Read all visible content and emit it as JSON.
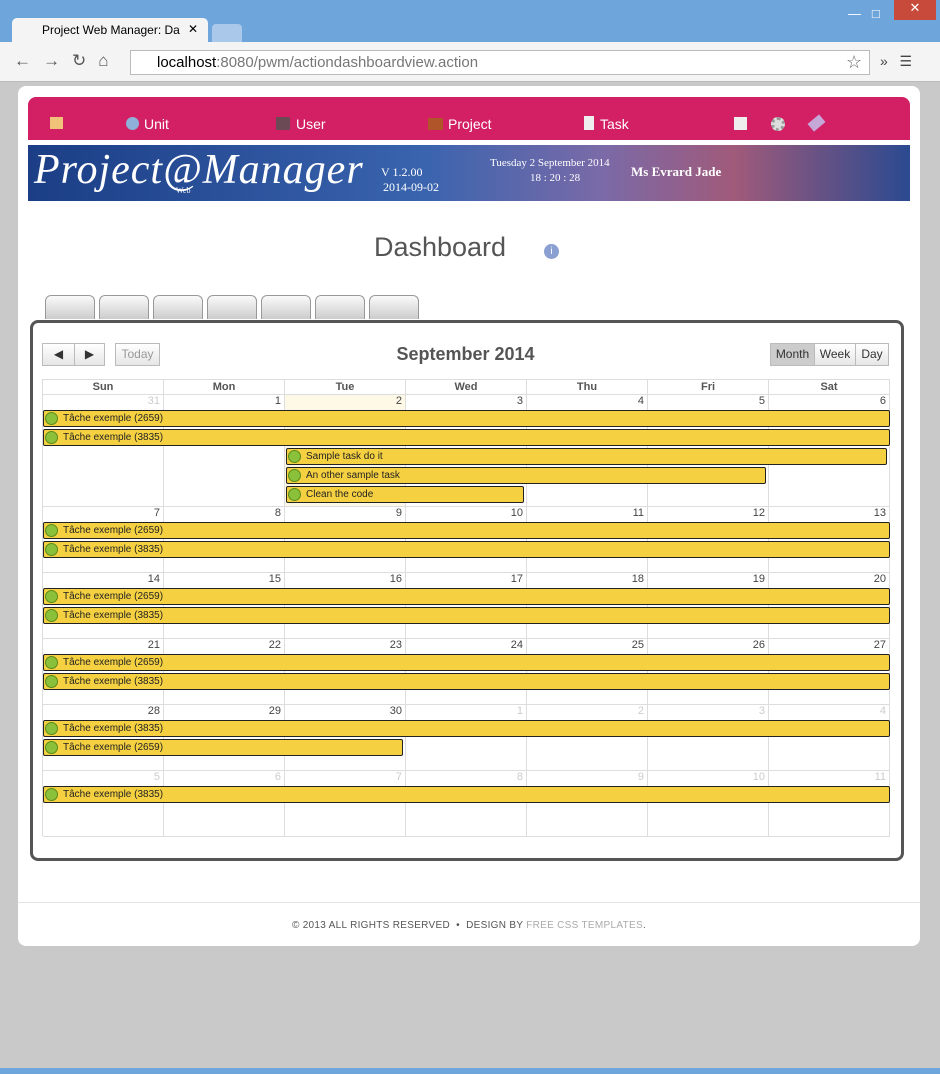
{
  "browser": {
    "tab_title": "Project Web Manager: Da",
    "url_host": "localhost",
    "url_rest": ":8080/pwm/actiondashboardview.action"
  },
  "nav": [
    "Unit",
    "User",
    "Project",
    "Task"
  ],
  "banner": {
    "logo": "Project@Manager",
    "logo_sub": "Web",
    "version": "V 1.2.00",
    "date": "2014-09-02",
    "long_date": "Tuesday 2 September 2014",
    "time": "18 : 20 : 28",
    "user": "Ms Evrard Jade"
  },
  "page_title": "Dashboard",
  "calendar": {
    "today_button": "Today",
    "title": "September 2014",
    "views": [
      "Month",
      "Week",
      "Day"
    ],
    "weekdays": [
      "Sun",
      "Mon",
      "Tue",
      "Wed",
      "Thu",
      "Fri",
      "Sat"
    ],
    "weeks": [
      {
        "days": [
          31,
          1,
          2,
          3,
          4,
          5,
          6
        ],
        "events": [
          "Tâche exemple (2659)",
          "Tâche exemple (3835)",
          "Sample task do it",
          "An other sample task",
          "Clean the code"
        ]
      },
      {
        "days": [
          7,
          8,
          9,
          10,
          11,
          12,
          13
        ],
        "events": [
          "Tâche exemple (2659)",
          "Tâche exemple (3835)"
        ]
      },
      {
        "days": [
          14,
          15,
          16,
          17,
          18,
          19,
          20
        ],
        "events": [
          "Tâche exemple (2659)",
          "Tâche exemple (3835)"
        ]
      },
      {
        "days": [
          21,
          22,
          23,
          24,
          25,
          26,
          27
        ],
        "events": [
          "Tâche exemple (2659)",
          "Tâche exemple (3835)"
        ]
      },
      {
        "days": [
          28,
          29,
          30,
          1,
          2,
          3,
          4
        ],
        "events": [
          "Tâche exemple (3835)",
          "Tâche exemple (2659)"
        ]
      },
      {
        "days": [
          5,
          6,
          7,
          8,
          9,
          10,
          11
        ],
        "events": [
          "Tâche exemple (3835)"
        ]
      }
    ]
  },
  "footer": {
    "copyright": "© 2013 ALL RIGHTS RESERVED",
    "separator": "•",
    "design_by": "DESIGN BY",
    "link": "FREE CSS TEMPLATES",
    "end": "."
  }
}
